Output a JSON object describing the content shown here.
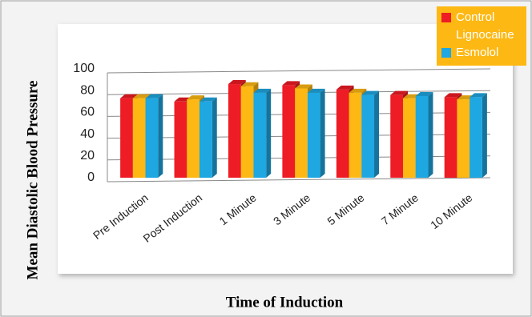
{
  "chart_data": {
    "type": "bar",
    "title": null,
    "x_label": "Time of Induction",
    "y_label": "Mean Diastolic Blood Pressure",
    "categories": [
      "Pre Induction",
      "Post Induction",
      "1 Minute",
      "3 Minute",
      "5 Minute",
      "7 Minute",
      "10 Minute"
    ],
    "series": [
      {
        "name": "Control",
        "color": "#ee1c25",
        "values": [
          73,
          70,
          86,
          85,
          81,
          76,
          74
        ]
      },
      {
        "name": "Lignocaine",
        "color": "#fdb813",
        "values": [
          73,
          72,
          84,
          82,
          78,
          73,
          72
        ]
      },
      {
        "name": "Esmolol",
        "color": "#1ea7e1",
        "values": [
          73,
          70,
          78,
          78,
          76,
          75,
          74
        ]
      }
    ],
    "ylim": [
      0,
      100
    ],
    "yticks": [
      0,
      20,
      40,
      60,
      80,
      100
    ],
    "grid": true,
    "legend": "top-right"
  }
}
